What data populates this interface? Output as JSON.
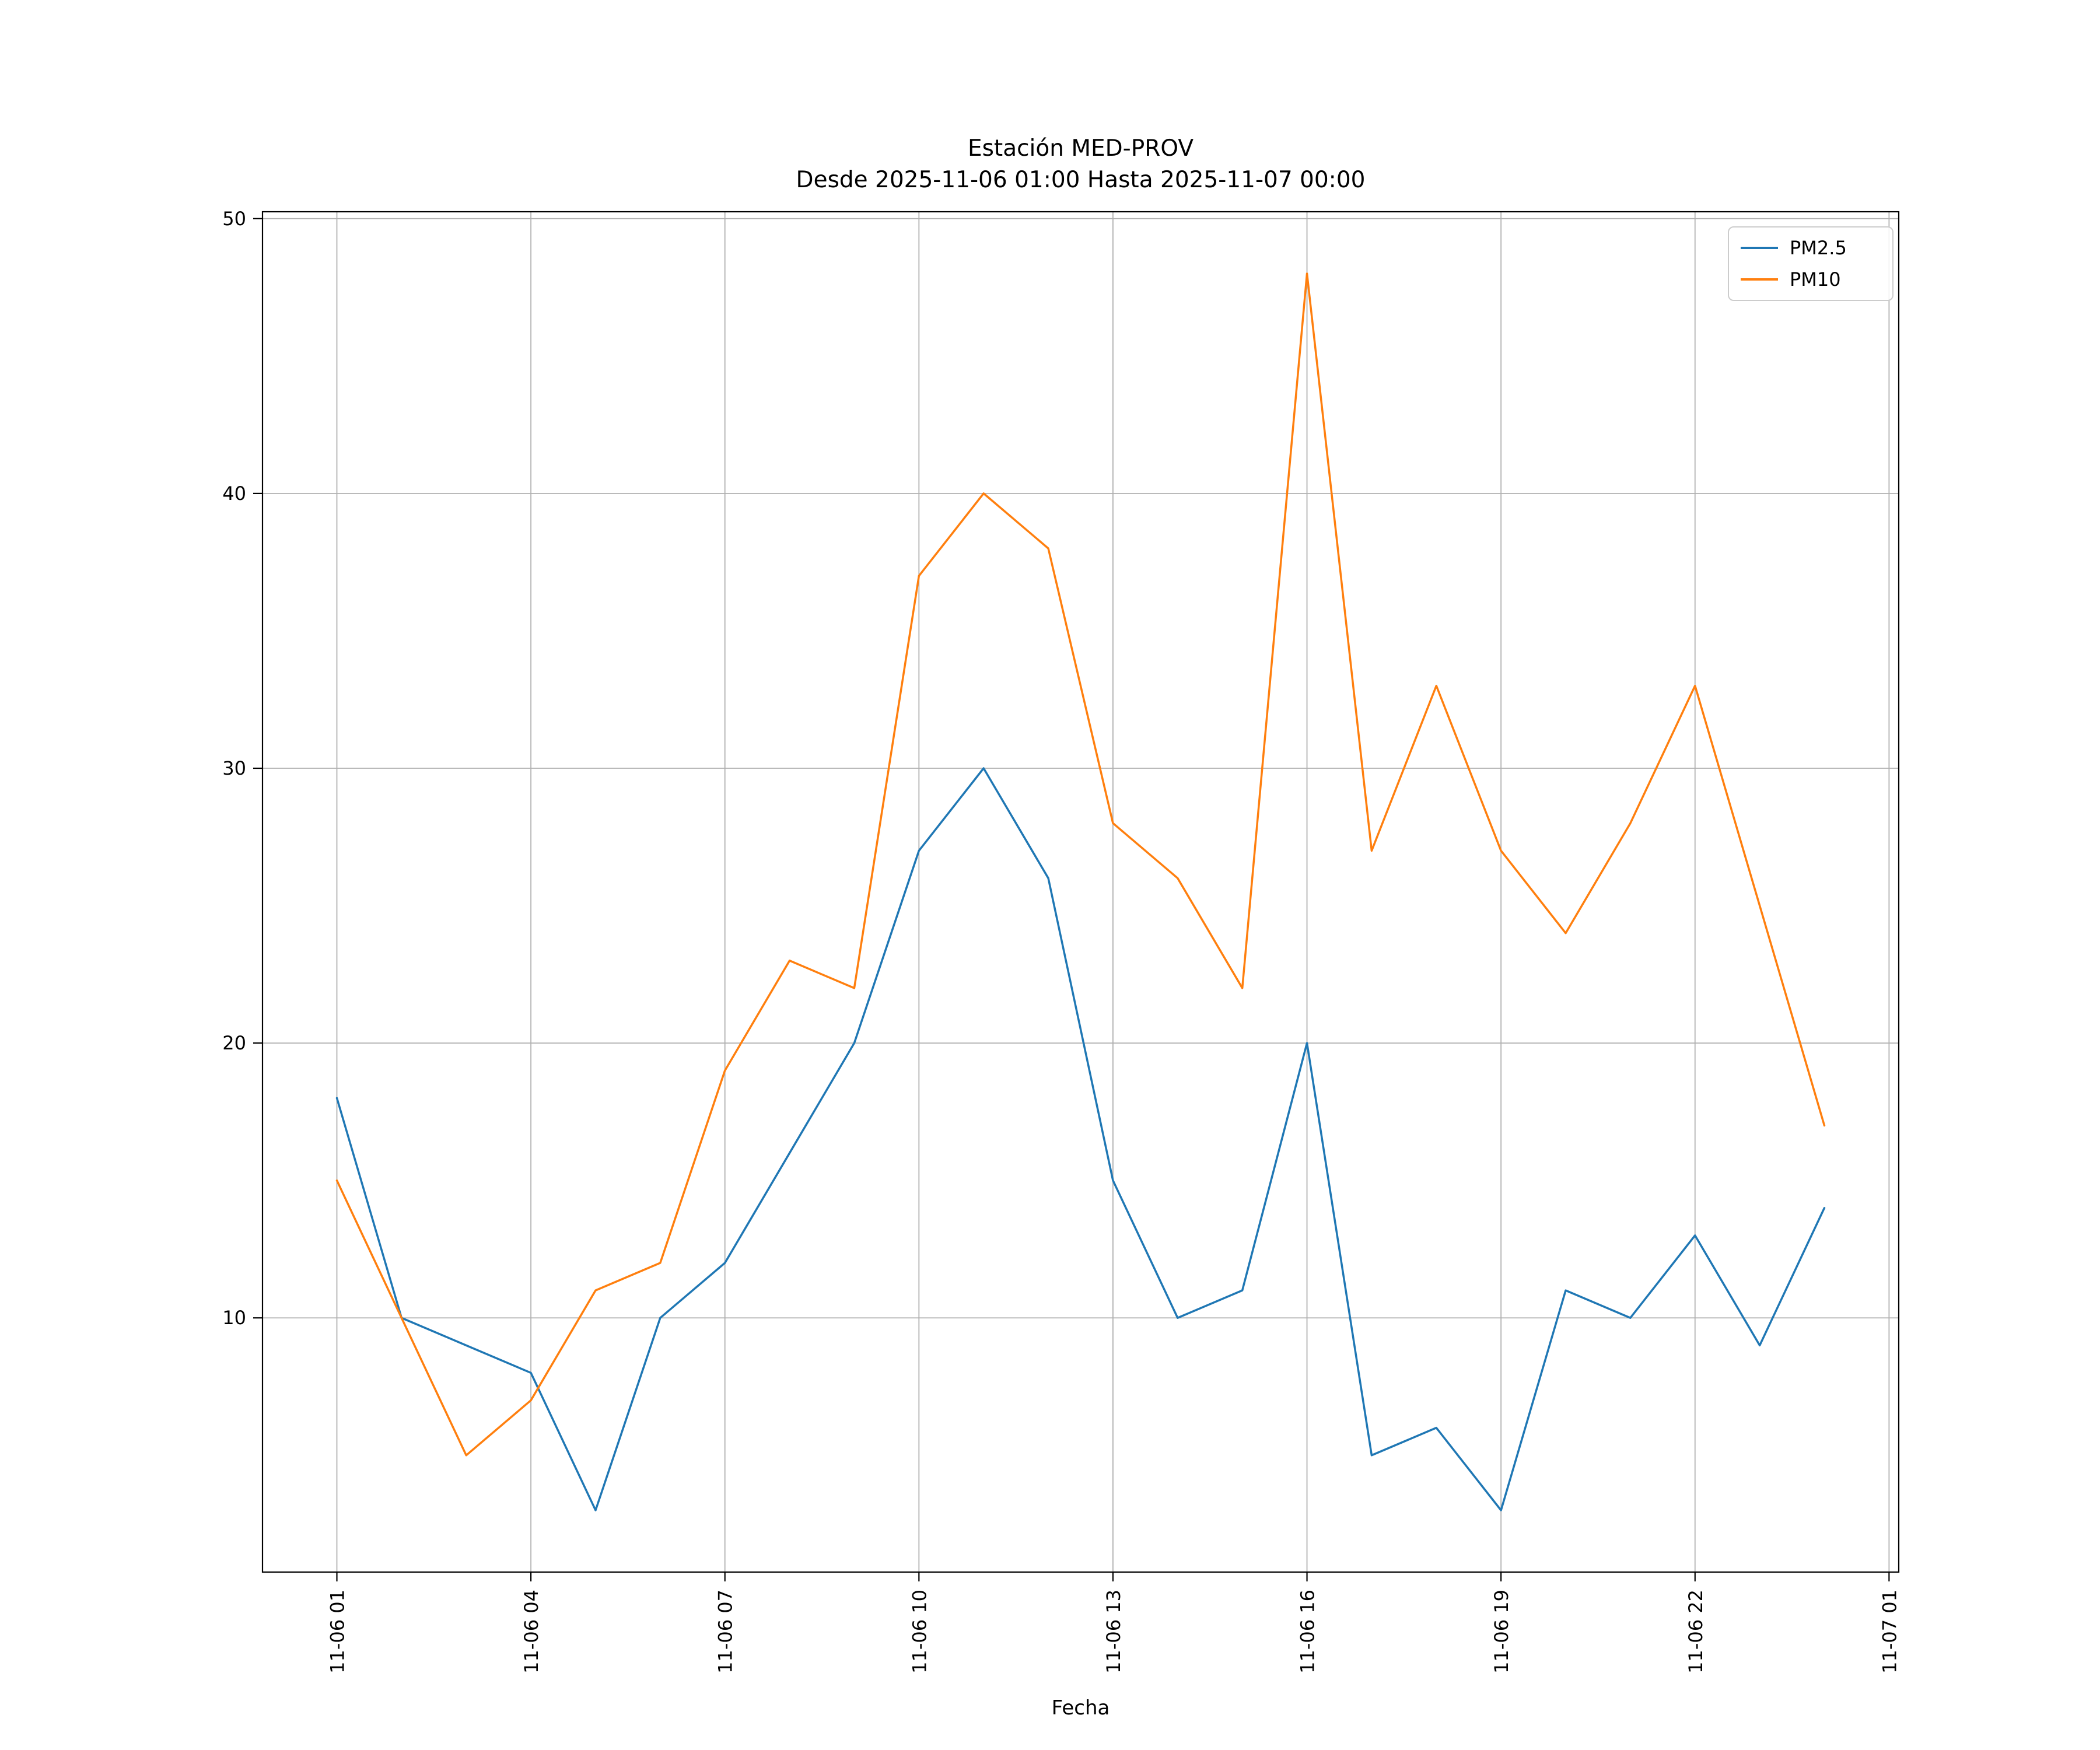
{
  "chart_data": {
    "type": "line",
    "title": "Estación MED-PROV",
    "subtitle": "Desde 2025-11-06 01:00 Hasta 2025-11-07 00:00",
    "xlabel": "Fecha",
    "ylabel": "",
    "x": [
      1,
      2,
      3,
      4,
      5,
      6,
      7,
      8,
      9,
      10,
      11,
      12,
      13,
      14,
      15,
      16,
      17,
      18,
      19,
      20,
      21,
      22,
      23,
      24
    ],
    "x_tick_positions": [
      1,
      4,
      7,
      10,
      13,
      16,
      19,
      22,
      25
    ],
    "x_tick_labels": [
      "11-06 01",
      "11-06 04",
      "11-06 07",
      "11-06 10",
      "11-06 13",
      "11-06 16",
      "11-06 19",
      "11-06 22",
      "11-07 01"
    ],
    "y_ticks": [
      10,
      20,
      30,
      40,
      50
    ],
    "xlim": [
      -0.15,
      25.15
    ],
    "ylim": [
      0.75,
      50.25
    ],
    "grid": true,
    "grid_color": "#b0b0b0",
    "legend_position": "upper right",
    "series": [
      {
        "name": "PM2.5",
        "color": "#1f77b4",
        "values": [
          18,
          10,
          9,
          8,
          3,
          10,
          12,
          16,
          20,
          27,
          30,
          26,
          15,
          10,
          11,
          20,
          5,
          6,
          3,
          11,
          10,
          13,
          9,
          14
        ]
      },
      {
        "name": "PM10",
        "color": "#ff7f0e",
        "values": [
          15,
          10,
          5,
          7,
          11,
          12,
          19,
          23,
          22,
          37,
          40,
          38,
          28,
          26,
          22,
          48,
          27,
          33,
          27,
          24,
          28,
          33,
          25,
          17
        ]
      }
    ]
  }
}
